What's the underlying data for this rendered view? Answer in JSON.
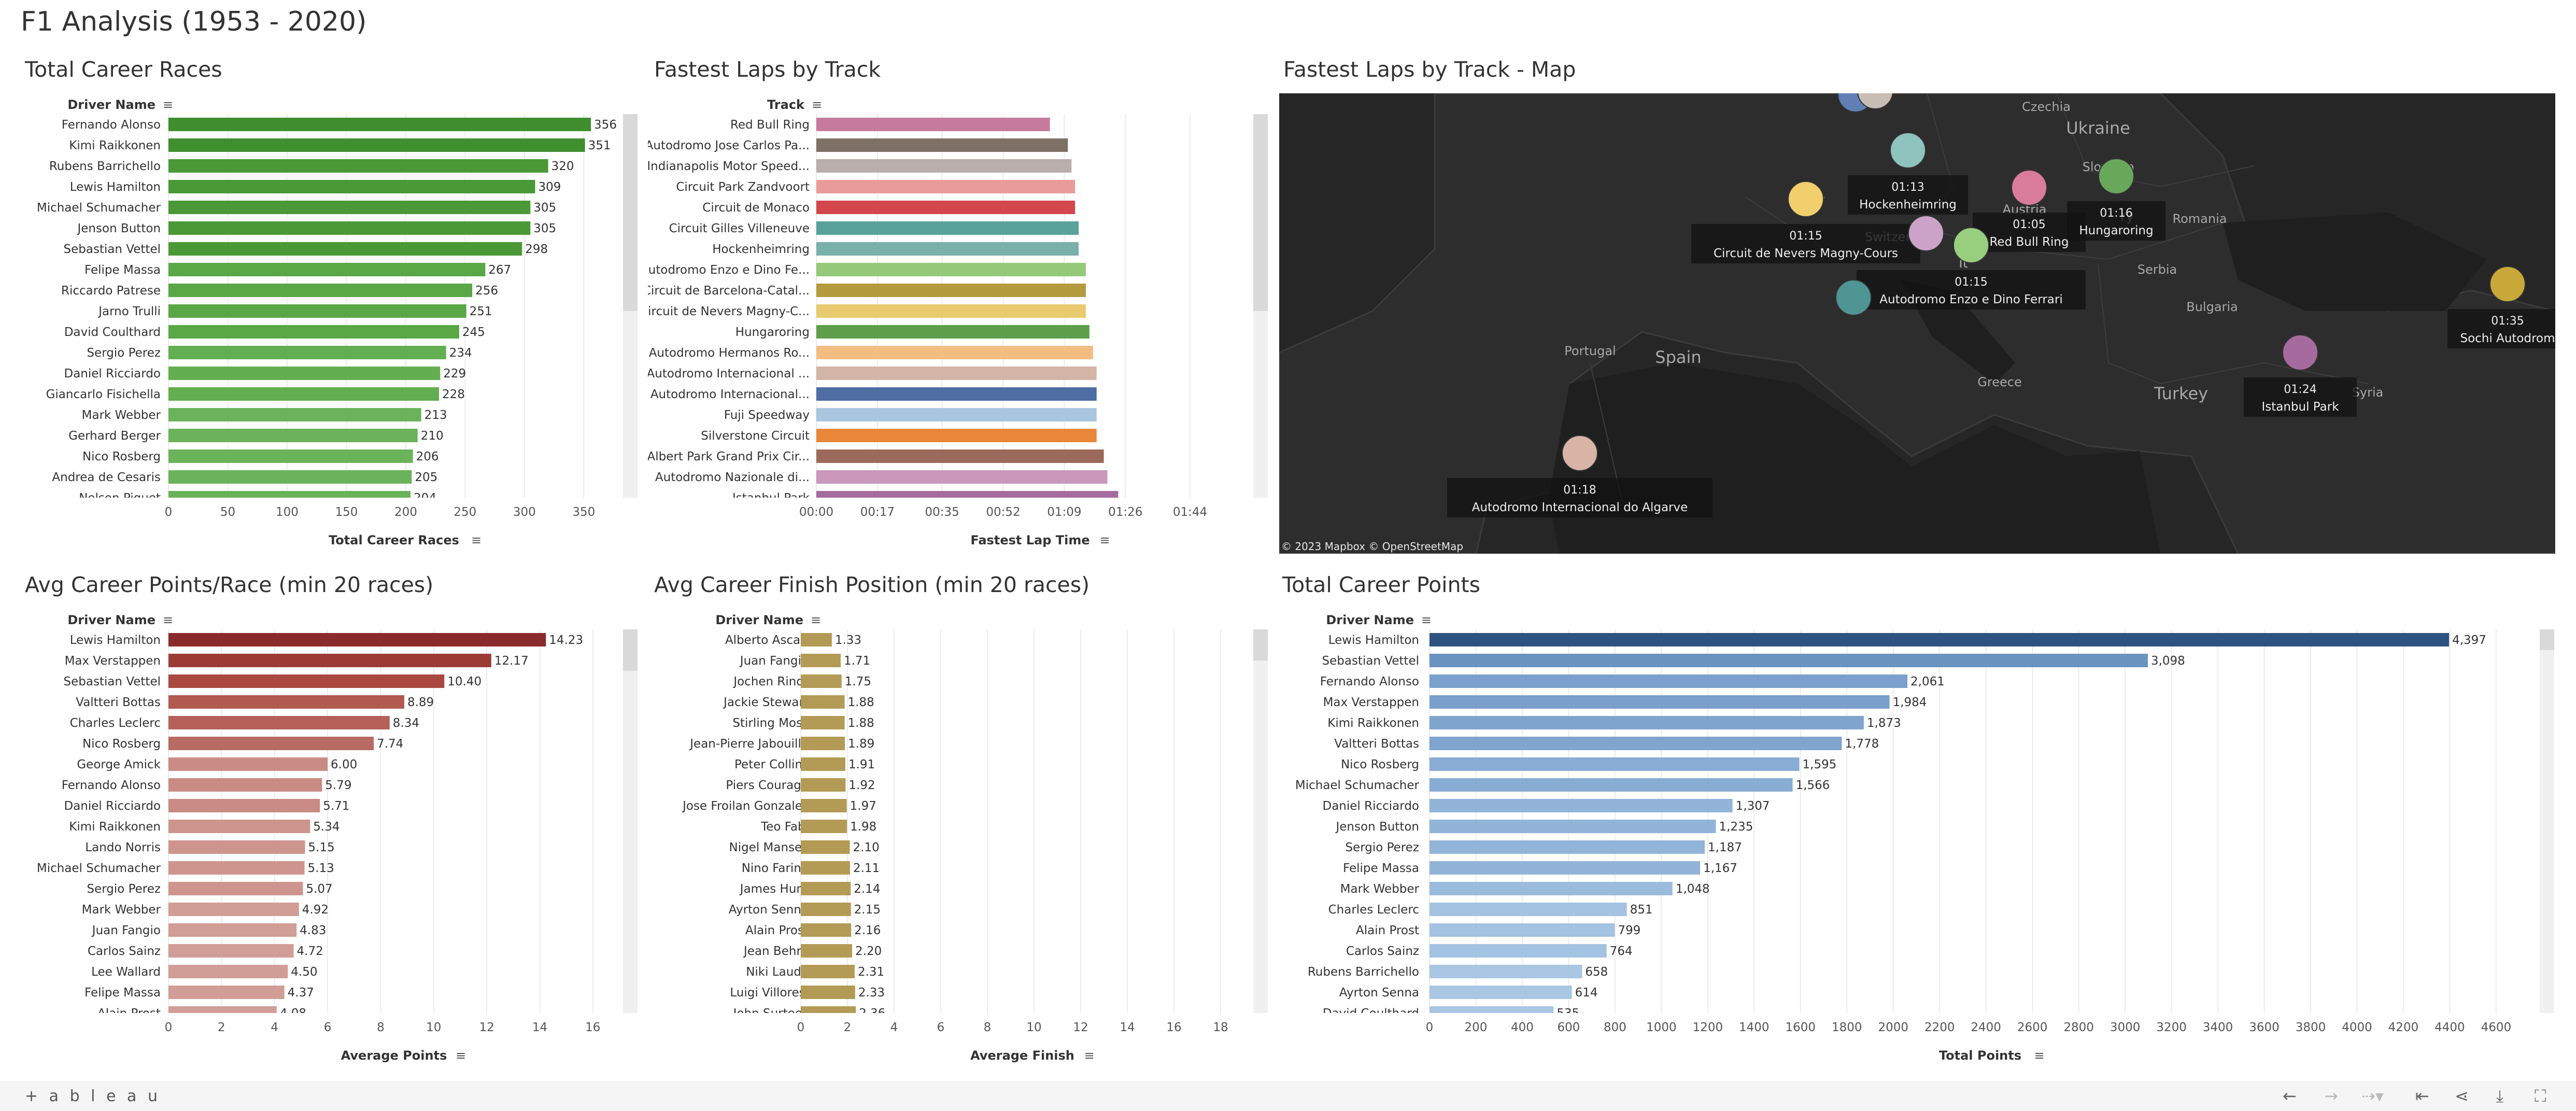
{
  "dashboard": {
    "title": "F1 Analysis (1953 - 2020)"
  },
  "chart_data": [
    {
      "id": "career_races",
      "type": "bar",
      "title": "Total Career Races",
      "row_header": "Driver Name",
      "xlabel": "Total Career Races",
      "xlim": [
        0,
        380
      ],
      "ticks": [
        0,
        50,
        100,
        150,
        200,
        250,
        300,
        350
      ],
      "categories": [
        "Fernando Alonso",
        "Kimi Raikkonen",
        "Rubens Barrichello",
        "Lewis Hamilton",
        "Michael Schumacher",
        "Jenson Button",
        "Sebastian Vettel",
        "Felipe Massa",
        "Riccardo Patrese",
        "Jarno Trulli",
        "David Coulthard",
        "Sergio Perez",
        "Daniel Ricciardo",
        "Giancarlo Fisichella",
        "Mark Webber",
        "Gerhard Berger",
        "Nico Rosberg",
        "Andrea de Cesaris",
        "Nelson Piquet"
      ],
      "values": [
        356,
        351,
        320,
        309,
        305,
        305,
        298,
        267,
        256,
        251,
        245,
        234,
        229,
        228,
        213,
        210,
        206,
        205,
        204
      ],
      "labels": [
        "356",
        "351",
        "320",
        "309",
        "305",
        "305",
        "298",
        "267",
        "256",
        "251",
        "245",
        "234",
        "229",
        "228",
        "213",
        "210",
        "206",
        "205",
        "204"
      ],
      "colors": [
        "#3f8f2f",
        "#3f8f2f",
        "#4a9936",
        "#4a9936",
        "#4a9936",
        "#4a9936",
        "#4a9936",
        "#59a745",
        "#59a745",
        "#59a745",
        "#59a745",
        "#63ae50",
        "#63ae50",
        "#63ae50",
        "#6bb35a",
        "#6bb35a",
        "#6bb35a",
        "#6bb35a",
        "#6bb35a"
      ]
    },
    {
      "id": "fastest_laps",
      "type": "bar",
      "title": "Fastest Laps by Track",
      "row_header": "Track",
      "xlabel": "Fastest Lap Time",
      "xlim": [
        0,
        119
      ],
      "ticks": [
        0,
        17,
        35,
        52,
        69,
        86,
        104
      ],
      "tick_labels": [
        "00:00",
        "00:17",
        "00:35",
        "00:52",
        "01:09",
        "01:26",
        "01:44"
      ],
      "categories": [
        "Red Bull Ring",
        "Autodromo Jose Carlos Pa...",
        "Indianapolis Motor Speed...",
        "Circuit Park Zandvoort",
        "Circuit de Monaco",
        "Circuit Gilles Villeneuve",
        "Hockenheimring",
        "Autodromo Enzo e Dino Fe...",
        "Circuit de Barcelona-Catal...",
        "Circuit de Nevers Magny-C...",
        "Hungaroring",
        "Autodromo Hermanos Ro...",
        "Autodromo Internacional ...",
        "Autodromo Internacional...",
        "Fuji Speedway",
        "Silverstone Circuit",
        "Albert Park Grand Prix Cir...",
        "Autodromo Nazionale di...",
        "Istanbul Park"
      ],
      "values": [
        65,
        70,
        71,
        72,
        72,
        73,
        73,
        75,
        75,
        75,
        76,
        77,
        78,
        78,
        78,
        78,
        80,
        81,
        84
      ],
      "colors": [
        "#c67a9b",
        "#7d7166",
        "#b9aeab",
        "#e89b98",
        "#d2464c",
        "#58a29b",
        "#79b0aa",
        "#95c97a",
        "#b39b3e",
        "#e9ca6f",
        "#5d9f4a",
        "#f3bd82",
        "#d2b5a6",
        "#4e6ea3",
        "#a9c5e0",
        "#e8873a",
        "#9b6a5b",
        "#c998bb",
        "#a66b9e"
      ]
    },
    {
      "id": "avg_points",
      "type": "bar",
      "title": "Avg Career Points/Race (min 20 races)",
      "row_header": "Driver Name",
      "xlabel": "Average Points",
      "xlim": [
        0,
        17
      ],
      "ticks": [
        0,
        2,
        4,
        6,
        8,
        10,
        12,
        14,
        16
      ],
      "categories": [
        "Lewis Hamilton",
        "Max Verstappen",
        "Sebastian Vettel",
        "Valtteri Bottas",
        "Charles Leclerc",
        "Nico Rosberg",
        "George Amick",
        "Fernando Alonso",
        "Daniel Ricciardo",
        "Kimi Raikkonen",
        "Lando Norris",
        "Michael Schumacher",
        "Sergio Perez",
        "Mark Webber",
        "Juan Fangio",
        "Carlos Sainz",
        "Lee Wallard",
        "Felipe Massa",
        "Alain Prost"
      ],
      "values": [
        14.23,
        12.17,
        10.4,
        8.89,
        8.34,
        7.74,
        6.0,
        5.79,
        5.71,
        5.34,
        5.15,
        5.13,
        5.07,
        4.92,
        4.83,
        4.72,
        4.5,
        4.37,
        4.08
      ],
      "labels": [
        "14.23",
        "12.17",
        "10.40",
        "8.89",
        "8.34",
        "7.74",
        "6.00",
        "5.79",
        "5.71",
        "5.34",
        "5.15",
        "5.13",
        "5.07",
        "4.92",
        "4.83",
        "4.72",
        "4.50",
        "4.37",
        "4.08"
      ],
      "colors": [
        "#8b2a2a",
        "#9c3b36",
        "#a9483f",
        "#b25a50",
        "#b5615a",
        "#b86b63",
        "#c98b84",
        "#c98b84",
        "#c98b84",
        "#cd958e",
        "#cd958e",
        "#cd958e",
        "#cd958e",
        "#d19d97",
        "#d19d97",
        "#d19d97",
        "#d19d97",
        "#d19d97",
        "#d19d97"
      ]
    },
    {
      "id": "avg_finish",
      "type": "bar",
      "title": "Avg Career Finish Position (min 20 races)",
      "row_header": "Driver Name",
      "xlabel": "Average Finish",
      "xlim": [
        0,
        19
      ],
      "ticks": [
        0,
        2,
        4,
        6,
        8,
        10,
        12,
        14,
        16,
        18
      ],
      "categories": [
        "Alberto Ascari",
        "Juan Fangio",
        "Jochen Rindt",
        "Jackie Stewart",
        "Stirling Moss",
        "Jean-Pierre Jabouille",
        "Peter Collins",
        "Piers Courage",
        "Jose Froilan Gonzalez",
        "Teo Fabi",
        "Nigel Mansell",
        "Nino Farina",
        "James Hunt",
        "Ayrton Senna",
        "Alain Prost",
        "Jean Behra",
        "Niki Lauda",
        "Luigi Villoresi",
        "John Surtees"
      ],
      "values": [
        1.33,
        1.71,
        1.75,
        1.88,
        1.88,
        1.89,
        1.91,
        1.92,
        1.97,
        1.98,
        2.1,
        2.11,
        2.14,
        2.15,
        2.16,
        2.2,
        2.31,
        2.33,
        2.36
      ],
      "labels": [
        "1.33",
        "1.71",
        "1.75",
        "1.88",
        "1.88",
        "1.89",
        "1.91",
        "1.92",
        "1.97",
        "1.98",
        "2.10",
        "2.11",
        "2.14",
        "2.15",
        "2.16",
        "2.20",
        "2.31",
        "2.33",
        "2.36"
      ],
      "colors": [
        "#b39b55"
      ]
    },
    {
      "id": "career_points",
      "type": "bar",
      "title": "Total Career Points",
      "row_header": "Driver Name",
      "xlabel": "Total Points",
      "xlim": [
        0,
        4750
      ],
      "ticks": [
        0,
        200,
        400,
        600,
        800,
        1000,
        1200,
        1400,
        1600,
        1800,
        2000,
        2200,
        2400,
        2600,
        2800,
        3000,
        3200,
        3400,
        3600,
        3800,
        4000,
        4200,
        4400,
        4600
      ],
      "categories": [
        "Lewis Hamilton",
        "Sebastian Vettel",
        "Fernando Alonso",
        "Max Verstappen",
        "Kimi Raikkonen",
        "Valtteri Bottas",
        "Nico Rosberg",
        "Michael Schumacher",
        "Daniel Ricciardo",
        "Jenson Button",
        "Sergio Perez",
        "Felipe Massa",
        "Mark Webber",
        "Charles Leclerc",
        "Alain Prost",
        "Carlos Sainz",
        "Rubens Barrichello",
        "Ayrton Senna",
        "David Coulthard"
      ],
      "values": [
        4397,
        3098,
        2061,
        1984,
        1873,
        1778,
        1595,
        1566,
        1307,
        1235,
        1187,
        1167,
        1048,
        851,
        799,
        764,
        658,
        614,
        535
      ],
      "labels": [
        "4,397",
        "3,098",
        "2,061",
        "1,984",
        "1,873",
        "1,778",
        "1,595",
        "1,566",
        "1,307",
        "1,235",
        "1,187",
        "1,167",
        "1,048",
        "851",
        "799",
        "764",
        "658",
        "614",
        "535"
      ],
      "colors": [
        "#2f5380",
        "#6b93c0",
        "#7aa0cb",
        "#7aa0cb",
        "#7fa5cf",
        "#7fa5cf",
        "#88acd3",
        "#88acd3",
        "#92b4d8",
        "#92b4d8",
        "#92b4d8",
        "#92b4d8",
        "#9bbbdc",
        "#a4c2e1",
        "#a4c2e1",
        "#a4c2e1",
        "#a9c6e3",
        "#a9c6e3",
        "#a9c6e3"
      ]
    }
  ],
  "map": {
    "title": "Fastest Laps by Track - Map",
    "attribution": "© 2023 Mapbox  © OpenStreetMap",
    "places": [
      {
        "label": "Czechia"
      },
      {
        "label": "Ukraine"
      },
      {
        "label": "Slovakia"
      },
      {
        "label": "Austria"
      },
      {
        "label": "Switzerland"
      },
      {
        "label": "Romania"
      },
      {
        "label": "Serbia"
      },
      {
        "label": "Bulgaria"
      },
      {
        "label": "Portugal"
      },
      {
        "label": "Spain"
      },
      {
        "label": "Greece"
      },
      {
        "label": "Turkey"
      },
      {
        "label": "Syria"
      },
      {
        "label": "Fr"
      },
      {
        "label": "It"
      },
      {
        "label": "ry"
      }
    ],
    "markers": [
      {
        "name": "Hockenheimring",
        "time": "01:13",
        "color": "#8fc3bd"
      },
      {
        "name": "Circuit de Nevers Magny-Cours",
        "time": "01:15",
        "color": "#f0cf6c"
      },
      {
        "name": "Red Bull Ring",
        "time": "01:05",
        "color": "#d97b9b"
      },
      {
        "name": "Hungaroring",
        "time": "01:16",
        "color": "#69a85a"
      },
      {
        "name": "Autodromo Enzo e Dino Ferrari",
        "time": "01:15",
        "color": "#97cf7e"
      },
      {
        "name": "Sochi Autodrom",
        "time": "01:35",
        "color": "#c9a83a"
      },
      {
        "name": "Istanbul Park",
        "time": "01:24",
        "color": "#a66b9e"
      },
      {
        "name": "Autodromo Internacional do Algarve",
        "time": "01:18",
        "color": "#d8b4a6"
      },
      {
        "name": "",
        "time": "",
        "color": "#cba3c8"
      },
      {
        "name": "",
        "time": "",
        "color": "#4f9594"
      },
      {
        "name": "",
        "time": "",
        "color": "#5f7fb5"
      },
      {
        "name": "",
        "time": "",
        "color": "#c8bdb4"
      }
    ]
  },
  "footer": {
    "logo": "+ a b l e a u",
    "icons": [
      "undo-icon",
      "redo-icon",
      "revert-icon",
      "reset-icon",
      "share-icon",
      "download-icon",
      "fullscreen-icon"
    ]
  }
}
